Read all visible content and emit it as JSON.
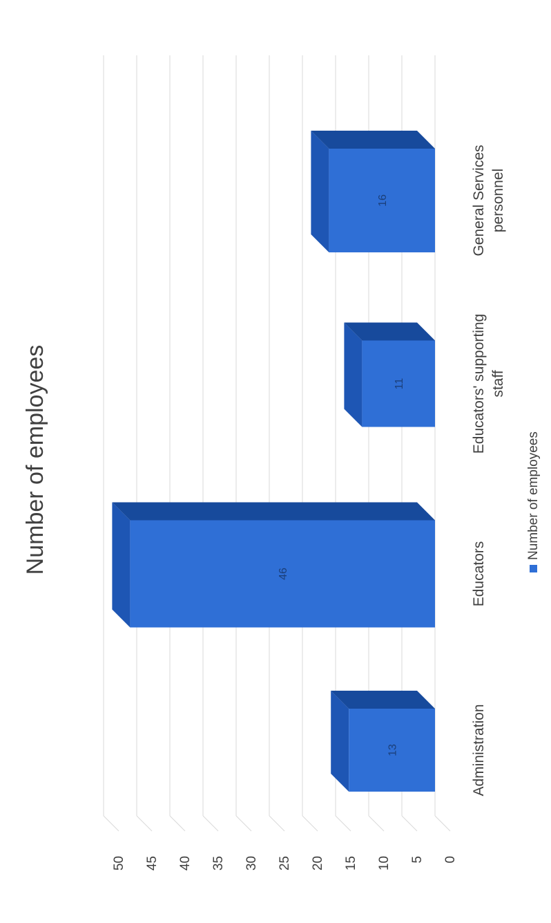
{
  "chart_data": {
    "type": "bar",
    "title": "Number of employees",
    "categories": [
      "Administration",
      "Educators",
      "Educators' supporting staff",
      "General Services personnel"
    ],
    "category_lines": [
      [
        "Administration"
      ],
      [
        "Educators"
      ],
      [
        "Educators' supporting",
        "staff"
      ],
      [
        "General Services",
        "personnel"
      ]
    ],
    "series": [
      {
        "name": "Number of employees",
        "values": [
          13,
          46,
          11,
          16
        ]
      }
    ],
    "data_labels": [
      "13",
      "46",
      "11",
      "16"
    ],
    "ylim": [
      0,
      50
    ],
    "yticks": [
      0,
      5,
      10,
      15,
      20,
      25,
      30,
      35,
      40,
      45,
      50
    ],
    "grid": true,
    "legend": "bottom",
    "orientation": "rotated 90° counter-clockwise",
    "colors": {
      "bar_front": "#2f6fd6",
      "bar_top": "#1e56b4",
      "bar_side": "#174a9c",
      "gridline": "#d9d9d9",
      "text": "#404040",
      "legend_swatch": "#2f6fd6"
    }
  }
}
